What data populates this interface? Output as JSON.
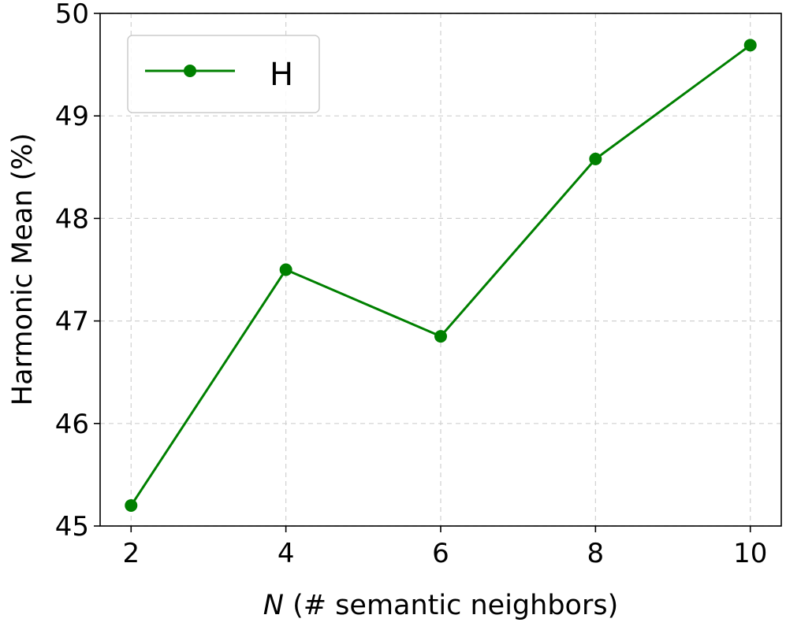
{
  "chart_data": {
    "type": "line",
    "x": [
      2,
      4,
      6,
      8,
      10
    ],
    "series": [
      {
        "name": "H",
        "values": [
          45.2,
          47.5,
          46.85,
          48.58,
          49.69
        ],
        "color": "#008000",
        "marker": "circle"
      }
    ],
    "xlabel_var": "N",
    "xlabel_rest": " (# semantic neighbors)",
    "ylabel": "Harmonic Mean (%)",
    "xticks": [
      "2",
      "4",
      "6",
      "8",
      "10"
    ],
    "yticks": [
      "45",
      "46",
      "47",
      "48",
      "49",
      "50"
    ],
    "xlim": [
      1.6,
      10.4
    ],
    "ylim": [
      45,
      50
    ],
    "grid": true,
    "legend_position": "top-left"
  }
}
